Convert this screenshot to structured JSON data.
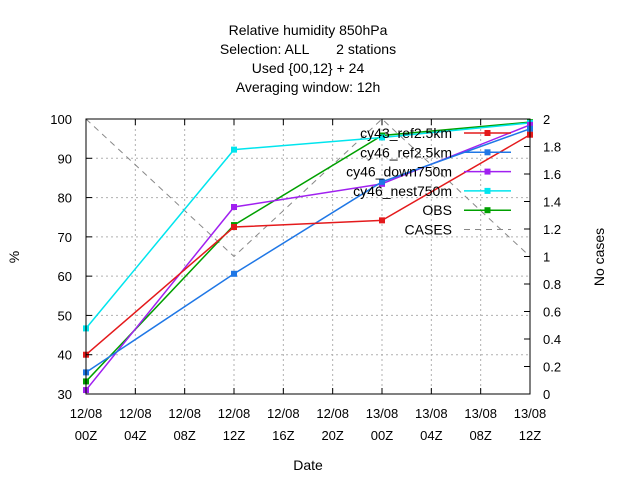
{
  "chart_data": {
    "type": "line",
    "title_lines": [
      "Relative humidity 850hPa",
      "Selection: ALL       2 stations",
      "Used {00,12} + 24",
      "Averaging window: 12h"
    ],
    "xlabel": "Date",
    "ylabel": "%",
    "y2label": "No cases",
    "x_ticks": [
      {
        "top": "12/08",
        "bottom": "00Z"
      },
      {
        "top": "12/08",
        "bottom": "04Z"
      },
      {
        "top": "12/08",
        "bottom": "08Z"
      },
      {
        "top": "12/08",
        "bottom": "12Z"
      },
      {
        "top": "12/08",
        "bottom": "16Z"
      },
      {
        "top": "12/08",
        "bottom": "20Z"
      },
      {
        "top": "13/08",
        "bottom": "00Z"
      },
      {
        "top": "13/08",
        "bottom": "04Z"
      },
      {
        "top": "13/08",
        "bottom": "08Z"
      },
      {
        "top": "13/08",
        "bottom": "12Z"
      }
    ],
    "x_range_hours": [
      0,
      36
    ],
    "ylim": [
      30,
      100
    ],
    "y_ticks": [
      "30",
      "40",
      "50",
      "60",
      "70",
      "80",
      "90",
      "100"
    ],
    "y2lim": [
      0,
      2
    ],
    "y2_ticks": [
      "0",
      "0.2",
      "0.4",
      "0.6",
      "0.8",
      "1",
      "1.2",
      "1.4",
      "1.6",
      "1.8",
      "2"
    ],
    "grid": true,
    "legend_position": "top-right",
    "series": [
      {
        "name": "cy43_ref2.5km",
        "color": "#e41a1c",
        "axis": "y1",
        "marker": "square",
        "x_hours": [
          0,
          12,
          24,
          36
        ],
        "values": [
          40.0,
          72.5,
          74.2,
          96.0
        ]
      },
      {
        "name": "cy46_ref2.5km",
        "color": "#1f77e6",
        "axis": "y1",
        "marker": "square",
        "x_hours": [
          0,
          12,
          24,
          36
        ],
        "values": [
          35.5,
          60.6,
          84.0,
          97.5
        ]
      },
      {
        "name": "cy46_down750m",
        "color": "#a020f0",
        "axis": "y1",
        "marker": "square",
        "x_hours": [
          0,
          12,
          24,
          36
        ],
        "values": [
          31.0,
          77.6,
          83.5,
          98.5
        ]
      },
      {
        "name": "cy46_nest750m",
        "color": "#00e5ee",
        "axis": "y1",
        "marker": "square",
        "x_hours": [
          0,
          12,
          24,
          36
        ],
        "values": [
          46.7,
          92.2,
          95.3,
          99.0
        ]
      },
      {
        "name": "OBS",
        "color": "#00a000",
        "axis": "y1",
        "marker": "square",
        "x_hours": [
          0,
          12,
          24,
          36
        ],
        "values": [
          33.2,
          73.0,
          95.8,
          99.2
        ]
      },
      {
        "name": "CASES",
        "color": "#888888",
        "axis": "y2",
        "marker": "none",
        "dashed": true,
        "x_hours": [
          0,
          12,
          24,
          36
        ],
        "values": [
          2,
          1,
          2,
          1
        ]
      }
    ]
  }
}
